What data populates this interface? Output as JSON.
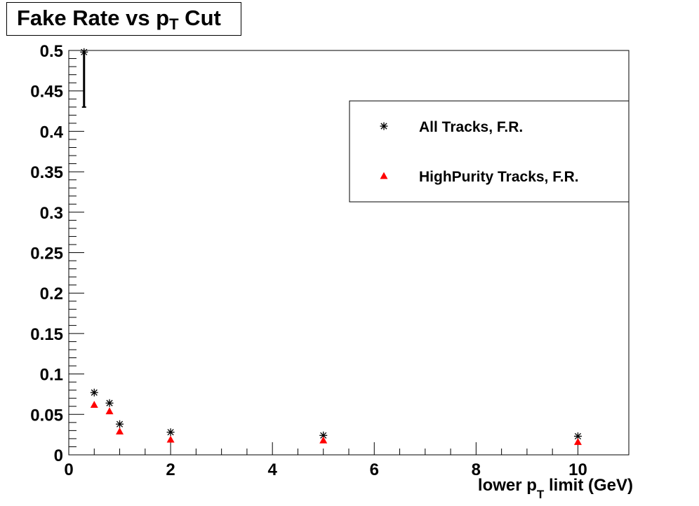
{
  "chart_data": {
    "type": "scatter",
    "title": {
      "main": "Fake Rate vs p",
      "sub": "T",
      "tail": " Cut"
    },
    "xlabel": {
      "main": "lower p",
      "sub": "T",
      "tail": " limit (GeV)"
    },
    "ylabel": "",
    "xlim": [
      0,
      11
    ],
    "ylim": [
      0,
      0.5
    ],
    "x_ticks": [
      "0",
      "2",
      "4",
      "6",
      "8",
      "10"
    ],
    "x_tick_values": [
      0,
      2,
      4,
      6,
      8,
      10
    ],
    "y_ticks": [
      "0",
      "0.05",
      "0.1",
      "0.15",
      "0.2",
      "0.25",
      "0.3",
      "0.35",
      "0.4",
      "0.45",
      "0.5"
    ],
    "y_tick_values": [
      0,
      0.05,
      0.1,
      0.15,
      0.2,
      0.25,
      0.3,
      0.35,
      0.4,
      0.45,
      0.5
    ],
    "grid": false,
    "legend_position": "top-right",
    "series": [
      {
        "name": "All Tracks, F.R.",
        "marker": "asterisk",
        "color": "#000000",
        "x": [
          0.3,
          0.5,
          0.8,
          1.0,
          2.0,
          5.0,
          10.0
        ],
        "y": [
          0.498,
          0.077,
          0.064,
          0.038,
          0.028,
          0.024,
          0.023
        ],
        "error_low": [
          0.068,
          0,
          0,
          0,
          0,
          0,
          0
        ],
        "error_high": [
          0.0,
          0,
          0,
          0,
          0,
          0,
          0
        ]
      },
      {
        "name": "HighPurity Tracks, F.R.",
        "marker": "triangle",
        "color": "#ff0000",
        "x": [
          0.5,
          0.8,
          1.0,
          2.0,
          5.0,
          10.0
        ],
        "y": [
          0.062,
          0.054,
          0.029,
          0.019,
          0.018,
          0.016
        ]
      }
    ]
  }
}
